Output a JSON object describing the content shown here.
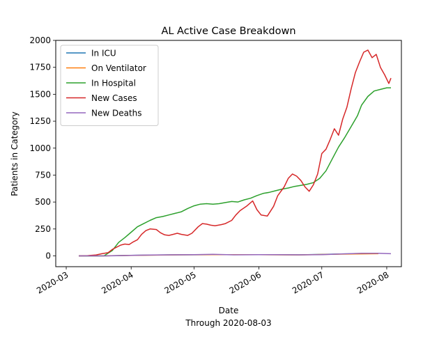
{
  "chart_data": {
    "type": "line",
    "title": "AL Active Case Breakdown",
    "xlabel": "Date",
    "xlabel_sub": "Through 2020-08-03",
    "ylabel": "Patients in Category",
    "xlim": [
      "2020-02-25",
      "2020-08-08"
    ],
    "ylim": [
      -100,
      2000
    ],
    "x_ticks": [
      "2020-03-01",
      "2020-04-01",
      "2020-05-01",
      "2020-06-01",
      "2020-07-01",
      "2020-08-01"
    ],
    "x_tick_labels": [
      "2020-03",
      "2020-04",
      "2020-05",
      "2020-06",
      "2020-07",
      "2020-08"
    ],
    "y_ticks": [
      0,
      250,
      500,
      750,
      1000,
      1250,
      1500,
      1750,
      2000
    ],
    "y_tick_labels": [
      "0",
      "250",
      "500",
      "750",
      "1000",
      "1250",
      "1500",
      "1750",
      "2000"
    ],
    "grid": false,
    "legend_position": "top-left",
    "series": [
      {
        "name": "In ICU",
        "color": "#1f77b4",
        "points": [
          [
            "2020-03-07",
            0
          ],
          [
            "2020-03-20",
            1
          ],
          [
            "2020-04-03",
            6
          ],
          [
            "2020-04-20",
            10
          ],
          [
            "2020-05-10",
            12
          ],
          [
            "2020-06-01",
            12
          ],
          [
            "2020-06-20",
            10
          ],
          [
            "2020-07-10",
            18
          ],
          [
            "2020-07-28",
            22
          ]
        ]
      },
      {
        "name": "On Ventilator",
        "color": "#ff7f0e",
        "points": [
          [
            "2020-03-07",
            0
          ],
          [
            "2020-03-20",
            1
          ],
          [
            "2020-04-03",
            5
          ],
          [
            "2020-04-20",
            9
          ],
          [
            "2020-05-10",
            11
          ],
          [
            "2020-06-01",
            11
          ],
          [
            "2020-06-20",
            9
          ],
          [
            "2020-07-10",
            16
          ],
          [
            "2020-07-28",
            20
          ]
        ]
      },
      {
        "name": "In Hospital",
        "color": "#2ca02c",
        "points": [
          [
            "2020-03-07",
            0
          ],
          [
            "2020-03-13",
            0
          ],
          [
            "2020-03-19",
            0
          ],
          [
            "2020-03-23",
            50
          ],
          [
            "2020-03-26",
            125
          ],
          [
            "2020-03-29",
            170
          ],
          [
            "2020-04-01",
            220
          ],
          [
            "2020-04-04",
            270
          ],
          [
            "2020-04-07",
            300
          ],
          [
            "2020-04-10",
            330
          ],
          [
            "2020-04-13",
            355
          ],
          [
            "2020-04-16",
            365
          ],
          [
            "2020-04-19",
            380
          ],
          [
            "2020-04-22",
            395
          ],
          [
            "2020-04-25",
            410
          ],
          [
            "2020-04-28",
            440
          ],
          [
            "2020-05-01",
            465
          ],
          [
            "2020-05-04",
            480
          ],
          [
            "2020-05-07",
            485
          ],
          [
            "2020-05-10",
            480
          ],
          [
            "2020-05-13",
            485
          ],
          [
            "2020-05-16",
            495
          ],
          [
            "2020-05-19",
            505
          ],
          [
            "2020-05-22",
            500
          ],
          [
            "2020-05-25",
            520
          ],
          [
            "2020-05-28",
            535
          ],
          [
            "2020-05-31",
            560
          ],
          [
            "2020-06-03",
            580
          ],
          [
            "2020-06-06",
            590
          ],
          [
            "2020-06-09",
            605
          ],
          [
            "2020-06-12",
            620
          ],
          [
            "2020-06-15",
            630
          ],
          [
            "2020-06-18",
            645
          ],
          [
            "2020-06-21",
            655
          ],
          [
            "2020-06-24",
            665
          ],
          [
            "2020-06-27",
            680
          ],
          [
            "2020-06-30",
            720
          ],
          [
            "2020-07-03",
            790
          ],
          [
            "2020-07-06",
            900
          ],
          [
            "2020-07-09",
            1010
          ],
          [
            "2020-07-12",
            1100
          ],
          [
            "2020-07-15",
            1200
          ],
          [
            "2020-07-18",
            1300
          ],
          [
            "2020-07-20",
            1400
          ],
          [
            "2020-07-23",
            1480
          ],
          [
            "2020-07-26",
            1530
          ],
          [
            "2020-07-29",
            1545
          ],
          [
            "2020-08-01",
            1560
          ],
          [
            "2020-08-03",
            1560
          ]
        ]
      },
      {
        "name": "New Cases",
        "color": "#d62728",
        "points": [
          [
            "2020-03-07",
            0
          ],
          [
            "2020-03-11",
            2
          ],
          [
            "2020-03-15",
            8
          ],
          [
            "2020-03-18",
            20
          ],
          [
            "2020-03-21",
            30
          ],
          [
            "2020-03-23",
            60
          ],
          [
            "2020-03-25",
            80
          ],
          [
            "2020-03-27",
            100
          ],
          [
            "2020-03-29",
            110
          ],
          [
            "2020-03-31",
            105
          ],
          [
            "2020-04-02",
            130
          ],
          [
            "2020-04-04",
            150
          ],
          [
            "2020-04-06",
            200
          ],
          [
            "2020-04-08",
            235
          ],
          [
            "2020-04-10",
            250
          ],
          [
            "2020-04-13",
            245
          ],
          [
            "2020-04-15",
            215
          ],
          [
            "2020-04-17",
            195
          ],
          [
            "2020-04-19",
            190
          ],
          [
            "2020-04-21",
            200
          ],
          [
            "2020-04-23",
            210
          ],
          [
            "2020-04-25",
            200
          ],
          [
            "2020-04-28",
            190
          ],
          [
            "2020-04-30",
            210
          ],
          [
            "2020-05-03",
            270
          ],
          [
            "2020-05-05",
            300
          ],
          [
            "2020-05-07",
            295
          ],
          [
            "2020-05-09",
            285
          ],
          [
            "2020-05-11",
            280
          ],
          [
            "2020-05-14",
            290
          ],
          [
            "2020-05-16",
            300
          ],
          [
            "2020-05-19",
            330
          ],
          [
            "2020-05-21",
            380
          ],
          [
            "2020-05-23",
            420
          ],
          [
            "2020-05-26",
            460
          ],
          [
            "2020-05-29",
            510
          ],
          [
            "2020-05-31",
            430
          ],
          [
            "2020-06-02",
            380
          ],
          [
            "2020-06-05",
            370
          ],
          [
            "2020-06-08",
            460
          ],
          [
            "2020-06-10",
            560
          ],
          [
            "2020-06-13",
            640
          ],
          [
            "2020-06-15",
            720
          ],
          [
            "2020-06-17",
            760
          ],
          [
            "2020-06-19",
            740
          ],
          [
            "2020-06-21",
            700
          ],
          [
            "2020-06-23",
            640
          ],
          [
            "2020-06-25",
            600
          ],
          [
            "2020-06-27",
            660
          ],
          [
            "2020-06-29",
            760
          ],
          [
            "2020-07-01",
            950
          ],
          [
            "2020-07-03",
            990
          ],
          [
            "2020-07-05",
            1080
          ],
          [
            "2020-07-07",
            1180
          ],
          [
            "2020-07-09",
            1120
          ],
          [
            "2020-07-11",
            1270
          ],
          [
            "2020-07-13",
            1380
          ],
          [
            "2020-07-15",
            1550
          ],
          [
            "2020-07-17",
            1700
          ],
          [
            "2020-07-19",
            1800
          ],
          [
            "2020-07-21",
            1890
          ],
          [
            "2020-07-23",
            1910
          ],
          [
            "2020-07-25",
            1840
          ],
          [
            "2020-07-27",
            1870
          ],
          [
            "2020-07-29",
            1750
          ],
          [
            "2020-07-31",
            1680
          ],
          [
            "2020-08-02",
            1600
          ],
          [
            "2020-08-03",
            1650
          ]
        ]
      },
      {
        "name": "New Deaths",
        "color": "#9467bd",
        "points": [
          [
            "2020-03-07",
            0
          ],
          [
            "2020-03-20",
            0
          ],
          [
            "2020-03-25",
            2
          ],
          [
            "2020-04-01",
            5
          ],
          [
            "2020-04-10",
            8
          ],
          [
            "2020-04-20",
            10
          ],
          [
            "2020-05-01",
            12
          ],
          [
            "2020-05-10",
            15
          ],
          [
            "2020-05-20",
            10
          ],
          [
            "2020-06-01",
            12
          ],
          [
            "2020-06-10",
            12
          ],
          [
            "2020-06-20",
            10
          ],
          [
            "2020-07-01",
            12
          ],
          [
            "2020-07-10",
            18
          ],
          [
            "2020-07-20",
            24
          ],
          [
            "2020-07-28",
            25
          ],
          [
            "2020-08-03",
            20
          ]
        ]
      }
    ]
  }
}
